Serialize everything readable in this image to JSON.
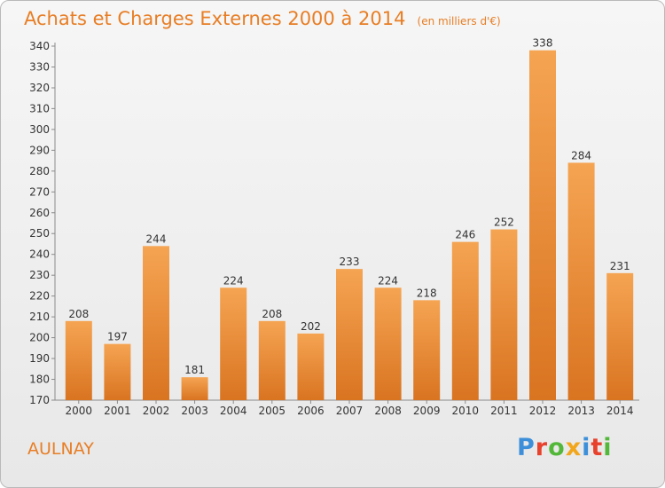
{
  "header": {
    "title": "Achats et Charges Externes 2000 à 2014",
    "unit": "(en milliers d'€)"
  },
  "footer": {
    "city": "AULNAY",
    "brand": "Proxiti",
    "brand_colors": [
      "#3d8fd9",
      "#e8412c",
      "#53b83a",
      "#f2a61c",
      "#3d8fd9",
      "#e8412c",
      "#53b83a"
    ]
  },
  "colors": {
    "accent": "#e87e25",
    "bar_top": "#f5a452",
    "bar_bottom": "#d97421"
  },
  "chart_data": {
    "type": "bar",
    "categories": [
      "2000",
      "2001",
      "2002",
      "2003",
      "2004",
      "2005",
      "2006",
      "2007",
      "2008",
      "2009",
      "2010",
      "2011",
      "2012",
      "2013",
      "2014"
    ],
    "values": [
      208,
      197,
      244,
      181,
      224,
      208,
      202,
      233,
      224,
      218,
      246,
      252,
      338,
      284,
      231
    ],
    "ylim": [
      170,
      340
    ],
    "ytick_step": 10,
    "grid": false,
    "data_labels": true
  }
}
